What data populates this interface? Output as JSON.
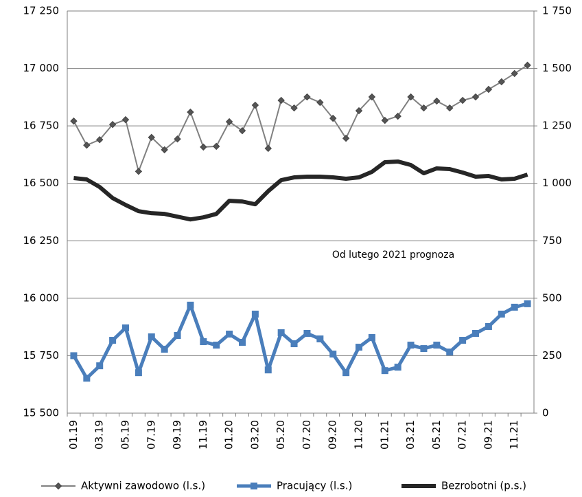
{
  "chart_data": {
    "type": "line",
    "annotation": "Od lutego 2021 prognoza",
    "categories": [
      "01.19",
      null,
      "03.19",
      null,
      "05.19",
      null,
      "07.19",
      null,
      "09.19",
      null,
      "11.19",
      null,
      "01.20",
      null,
      "03.20",
      null,
      "05.20",
      null,
      "07.20",
      null,
      "09.20",
      null,
      "11.20",
      null,
      "01.21",
      null,
      "03.21",
      null,
      "05.21",
      null,
      "07.21",
      null,
      "09.21",
      null,
      "11.21",
      null
    ],
    "series": [
      {
        "name": "Aktywni zawodowo (l.s.)",
        "color": "#808080",
        "marker_color": "#555555",
        "marker": "diamond",
        "axis": "y",
        "values": [
          16771,
          16666,
          16690,
          16756,
          16777,
          16552,
          16700,
          16646,
          16693,
          16810,
          16658,
          16661,
          16768,
          16729,
          16840,
          16652,
          16861,
          16828,
          16876,
          16852,
          16783,
          16696,
          16816,
          16876,
          16774,
          16792,
          16876,
          16828,
          16858,
          16828,
          16861,
          16876,
          16909,
          16942,
          16978,
          17014
        ]
      },
      {
        "name": "Pracujący (l.s.)",
        "color": "#4a7ebb",
        "marker_color": "#4a7ebb",
        "marker": "square",
        "axis": "y",
        "values": [
          15750,
          15652,
          15706,
          15817,
          15871,
          15676,
          15832,
          15778,
          15838,
          15970,
          15811,
          15796,
          15844,
          15808,
          15931,
          15688,
          15850,
          15802,
          15847,
          15823,
          15757,
          15676,
          15787,
          15829,
          15685,
          15700,
          15796,
          15781,
          15796,
          15766,
          15817,
          15847,
          15877,
          15931,
          15961,
          15976
        ]
      },
      {
        "name": "Bezrobotni (p.s.)",
        "color": "#262626",
        "marker": null,
        "axis": "y2",
        "values": [
          1023,
          1017,
          984,
          936,
          906,
          879,
          870,
          867,
          855,
          843,
          852,
          867,
          924,
          921,
          909,
          966,
          1014,
          1026,
          1029,
          1029,
          1026,
          1020,
          1026,
          1050,
          1092,
          1095,
          1080,
          1044,
          1065,
          1062,
          1047,
          1029,
          1032,
          1017,
          1020,
          1038
        ]
      }
    ],
    "ylim": [
      15500,
      17250
    ],
    "yticks": [
      {
        "value": 15500,
        "label": "15 500"
      },
      {
        "value": 15750,
        "label": "15 750"
      },
      {
        "value": 16000,
        "label": "16 000"
      },
      {
        "value": 16250,
        "label": "16 250"
      },
      {
        "value": 16500,
        "label": "16 500"
      },
      {
        "value": 16750,
        "label": "16 750"
      },
      {
        "value": 17000,
        "label": "17 000"
      },
      {
        "value": 17250,
        "label": "17 250"
      }
    ],
    "y2lim": [
      0,
      1750
    ],
    "y2ticks": [
      0,
      250,
      500,
      750,
      {
        "value": 1000,
        "label": "1 000"
      },
      {
        "value": 1250,
        "label": "1 250"
      },
      {
        "value": 1500,
        "label": "1 500"
      },
      {
        "value": 1750,
        "label": "1 750"
      }
    ],
    "grid": true
  }
}
